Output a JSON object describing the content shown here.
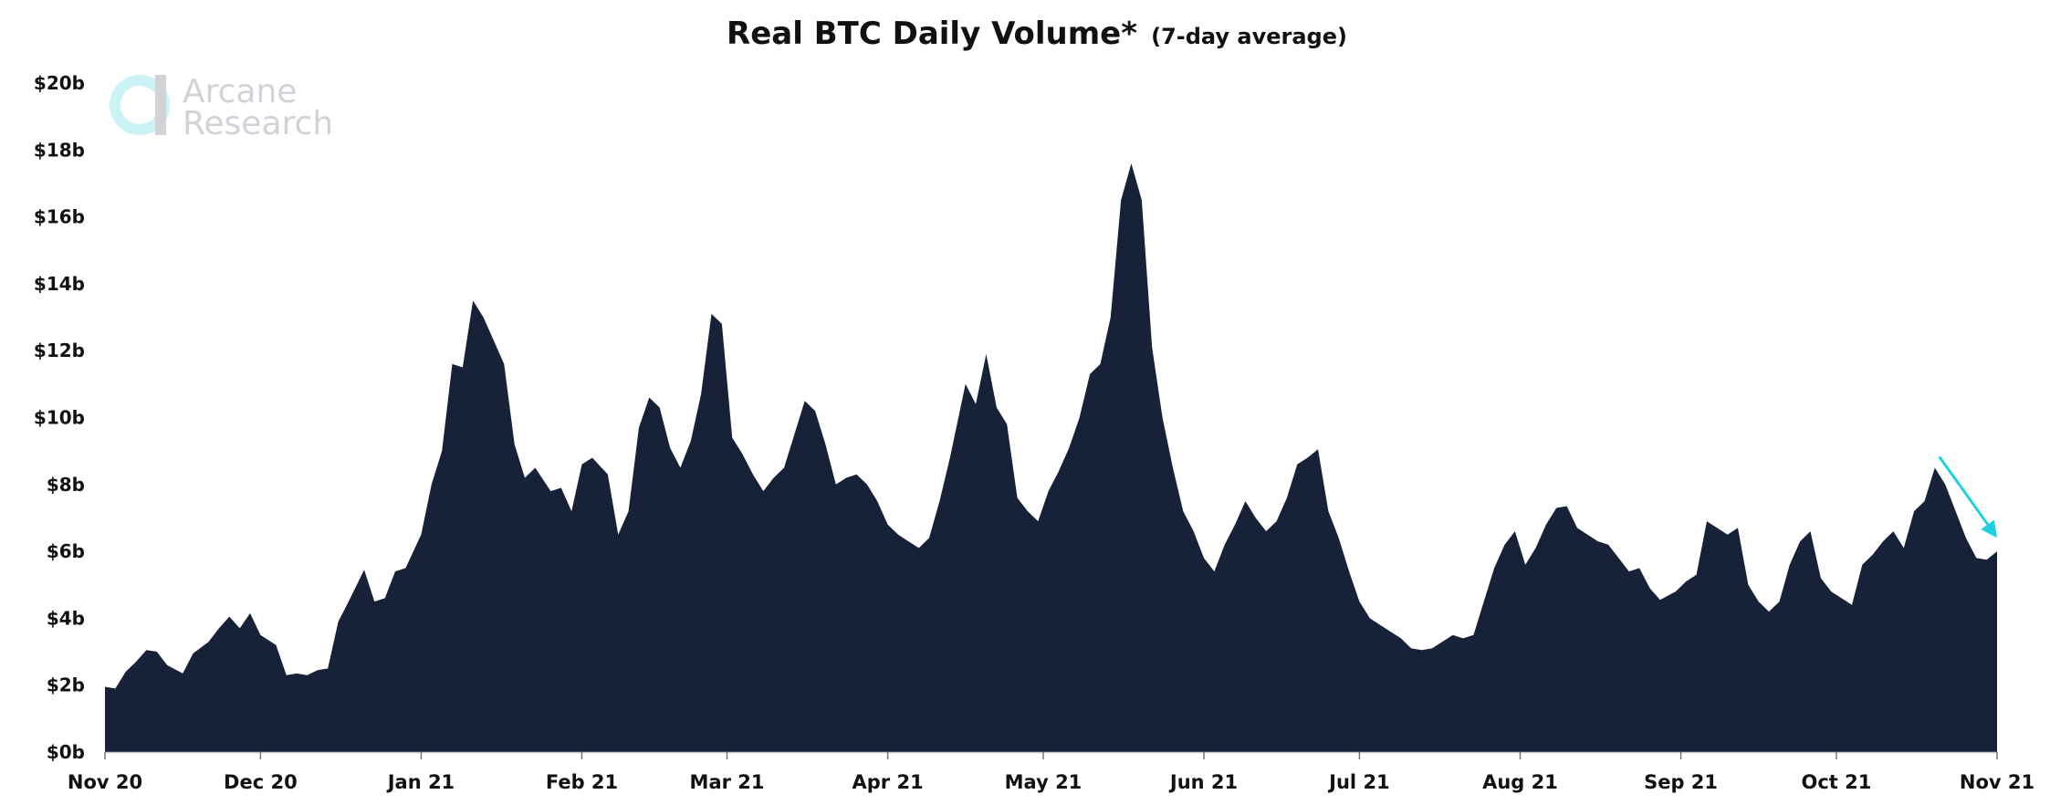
{
  "chart_data": {
    "type": "area",
    "title": "Real BTC Daily Volume*",
    "subtitle": "(7-day average)",
    "watermark": [
      "Arcane",
      "Research"
    ],
    "colors": {
      "area": "#172239",
      "arrow": "#1fd1de",
      "text": "#111111",
      "logo_ring": "#c9f3f6",
      "logo_text": "#cfd1d8"
    },
    "x_start": "2020-11-01",
    "x_end": "2021-11-01",
    "x_ticks": [
      "Nov 20",
      "Dec 20",
      "Jan 21",
      "Feb 21",
      "Mar 21",
      "Apr 21",
      "May 21",
      "Jun 21",
      "Jul 21",
      "Aug 21",
      "Sep 21",
      "Oct 21",
      "Nov 21"
    ],
    "y_ticks": [
      "$0b",
      "$2b",
      "$4b",
      "$6b",
      "$8b",
      "$10b",
      "$12b",
      "$14b",
      "$16b",
      "$18b",
      "$20b"
    ],
    "ylim": [
      0,
      20
    ],
    "yunit": "$ billions",
    "annotation": {
      "type": "arrow",
      "from": [
        "2021-10-21",
        8.8
      ],
      "to": [
        "2021-11-01",
        6.4
      ]
    },
    "series": [
      {
        "values": [
          [
            "2020-11-01",
            1.95
          ],
          [
            "2020-11-03",
            1.9
          ],
          [
            "2020-11-05",
            2.4
          ],
          [
            "2020-11-07",
            2.7
          ],
          [
            "2020-11-09",
            3.05
          ],
          [
            "2020-11-11",
            3.0
          ],
          [
            "2020-11-13",
            2.6
          ],
          [
            "2020-11-16",
            2.35
          ],
          [
            "2020-11-18",
            2.95
          ],
          [
            "2020-11-21",
            3.3
          ],
          [
            "2020-11-23",
            3.7
          ],
          [
            "2020-11-25",
            4.05
          ],
          [
            "2020-11-27",
            3.7
          ],
          [
            "2020-11-29",
            4.15
          ],
          [
            "2020-12-01",
            3.5
          ],
          [
            "2020-12-04",
            3.2
          ],
          [
            "2020-12-06",
            2.3
          ],
          [
            "2020-12-08",
            2.35
          ],
          [
            "2020-12-10",
            2.3
          ],
          [
            "2020-12-12",
            2.45
          ],
          [
            "2020-12-14",
            2.5
          ],
          [
            "2020-12-16",
            3.9
          ],
          [
            "2020-12-18",
            4.5
          ],
          [
            "2020-12-21",
            5.45
          ],
          [
            "2020-12-23",
            4.5
          ],
          [
            "2020-12-25",
            4.6
          ],
          [
            "2020-12-27",
            5.4
          ],
          [
            "2020-12-29",
            5.5
          ],
          [
            "2021-01-01",
            6.5
          ],
          [
            "2021-01-03",
            8.0
          ],
          [
            "2021-01-05",
            9.0
          ],
          [
            "2021-01-07",
            11.6
          ],
          [
            "2021-01-09",
            11.5
          ],
          [
            "2021-01-11",
            13.5
          ],
          [
            "2021-01-13",
            13.0
          ],
          [
            "2021-01-15",
            12.3
          ],
          [
            "2021-01-17",
            11.6
          ],
          [
            "2021-01-19",
            9.2
          ],
          [
            "2021-01-21",
            8.2
          ],
          [
            "2021-01-23",
            8.5
          ],
          [
            "2021-01-26",
            7.8
          ],
          [
            "2021-01-28",
            7.9
          ],
          [
            "2021-01-30",
            7.2
          ],
          [
            "2021-02-01",
            8.6
          ],
          [
            "2021-02-03",
            8.8
          ],
          [
            "2021-02-06",
            8.3
          ],
          [
            "2021-02-08",
            6.5
          ],
          [
            "2021-02-10",
            7.2
          ],
          [
            "2021-02-12",
            9.7
          ],
          [
            "2021-02-14",
            10.6
          ],
          [
            "2021-02-16",
            10.3
          ],
          [
            "2021-02-18",
            9.1
          ],
          [
            "2021-02-20",
            8.5
          ],
          [
            "2021-02-22",
            9.3
          ],
          [
            "2021-02-24",
            10.7
          ],
          [
            "2021-02-26",
            13.1
          ],
          [
            "2021-02-28",
            12.8
          ],
          [
            "2021-03-02",
            9.4
          ],
          [
            "2021-03-04",
            8.9
          ],
          [
            "2021-03-06",
            8.3
          ],
          [
            "2021-03-08",
            7.8
          ],
          [
            "2021-03-10",
            8.2
          ],
          [
            "2021-03-12",
            8.5
          ],
          [
            "2021-03-14",
            9.5
          ],
          [
            "2021-03-16",
            10.5
          ],
          [
            "2021-03-18",
            10.2
          ],
          [
            "2021-03-20",
            9.2
          ],
          [
            "2021-03-22",
            8.0
          ],
          [
            "2021-03-24",
            8.2
          ],
          [
            "2021-03-26",
            8.3
          ],
          [
            "2021-03-28",
            8.0
          ],
          [
            "2021-03-30",
            7.5
          ],
          [
            "2021-04-01",
            6.8
          ],
          [
            "2021-04-03",
            6.5
          ],
          [
            "2021-04-05",
            6.3
          ],
          [
            "2021-04-07",
            6.1
          ],
          [
            "2021-04-09",
            6.4
          ],
          [
            "2021-04-11",
            7.5
          ],
          [
            "2021-04-13",
            8.8
          ],
          [
            "2021-04-16",
            11.0
          ],
          [
            "2021-04-18",
            10.4
          ],
          [
            "2021-04-20",
            11.9
          ],
          [
            "2021-04-22",
            10.3
          ],
          [
            "2021-04-24",
            9.8
          ],
          [
            "2021-04-26",
            7.6
          ],
          [
            "2021-04-28",
            7.2
          ],
          [
            "2021-04-30",
            6.9
          ],
          [
            "2021-05-02",
            7.8
          ],
          [
            "2021-05-04",
            8.4
          ],
          [
            "2021-05-06",
            9.1
          ],
          [
            "2021-05-08",
            10.0
          ],
          [
            "2021-05-10",
            11.3
          ],
          [
            "2021-05-12",
            11.6
          ],
          [
            "2021-05-14",
            13.0
          ],
          [
            "2021-05-16",
            16.5
          ],
          [
            "2021-05-18",
            17.6
          ],
          [
            "2021-05-20",
            16.5
          ],
          [
            "2021-05-22",
            12.1
          ],
          [
            "2021-05-24",
            10.0
          ],
          [
            "2021-05-26",
            8.5
          ],
          [
            "2021-05-28",
            7.2
          ],
          [
            "2021-05-30",
            6.6
          ],
          [
            "2021-06-01",
            5.8
          ],
          [
            "2021-06-03",
            5.4
          ],
          [
            "2021-06-05",
            6.2
          ],
          [
            "2021-06-07",
            6.8
          ],
          [
            "2021-06-09",
            7.5
          ],
          [
            "2021-06-11",
            7.0
          ],
          [
            "2021-06-13",
            6.6
          ],
          [
            "2021-06-15",
            6.9
          ],
          [
            "2021-06-17",
            7.6
          ],
          [
            "2021-06-19",
            8.6
          ],
          [
            "2021-06-21",
            8.8
          ],
          [
            "2021-06-23",
            9.05
          ],
          [
            "2021-06-25",
            7.2
          ],
          [
            "2021-06-27",
            6.4
          ],
          [
            "2021-06-29",
            5.4
          ],
          [
            "2021-07-01",
            4.5
          ],
          [
            "2021-07-03",
            4.0
          ],
          [
            "2021-07-05",
            3.8
          ],
          [
            "2021-07-07",
            3.6
          ],
          [
            "2021-07-09",
            3.4
          ],
          [
            "2021-07-11",
            3.1
          ],
          [
            "2021-07-13",
            3.05
          ],
          [
            "2021-07-15",
            3.1
          ],
          [
            "2021-07-17",
            3.3
          ],
          [
            "2021-07-19",
            3.5
          ],
          [
            "2021-07-21",
            3.4
          ],
          [
            "2021-07-23",
            3.5
          ],
          [
            "2021-07-25",
            4.5
          ],
          [
            "2021-07-27",
            5.5
          ],
          [
            "2021-07-29",
            6.2
          ],
          [
            "2021-07-31",
            6.6
          ],
          [
            "2021-08-02",
            5.6
          ],
          [
            "2021-08-04",
            6.1
          ],
          [
            "2021-08-06",
            6.8
          ],
          [
            "2021-08-08",
            7.3
          ],
          [
            "2021-08-10",
            7.35
          ],
          [
            "2021-08-12",
            6.7
          ],
          [
            "2021-08-14",
            6.5
          ],
          [
            "2021-08-16",
            6.3
          ],
          [
            "2021-08-18",
            6.2
          ],
          [
            "2021-08-20",
            5.8
          ],
          [
            "2021-08-22",
            5.4
          ],
          [
            "2021-08-24",
            5.5
          ],
          [
            "2021-08-26",
            4.9
          ],
          [
            "2021-08-28",
            4.55
          ],
          [
            "2021-08-31",
            4.8
          ],
          [
            "2021-09-02",
            5.1
          ],
          [
            "2021-09-04",
            5.3
          ],
          [
            "2021-09-06",
            6.9
          ],
          [
            "2021-09-08",
            6.7
          ],
          [
            "2021-09-10",
            6.5
          ],
          [
            "2021-09-12",
            6.7
          ],
          [
            "2021-09-14",
            5.0
          ],
          [
            "2021-09-16",
            4.5
          ],
          [
            "2021-09-18",
            4.2
          ],
          [
            "2021-09-20",
            4.5
          ],
          [
            "2021-09-22",
            5.6
          ],
          [
            "2021-09-24",
            6.3
          ],
          [
            "2021-09-26",
            6.6
          ],
          [
            "2021-09-28",
            5.2
          ],
          [
            "2021-09-30",
            4.8
          ],
          [
            "2021-10-02",
            4.6
          ],
          [
            "2021-10-04",
            4.4
          ],
          [
            "2021-10-06",
            5.6
          ],
          [
            "2021-10-08",
            5.9
          ],
          [
            "2021-10-10",
            6.3
          ],
          [
            "2021-10-12",
            6.6
          ],
          [
            "2021-10-14",
            6.1
          ],
          [
            "2021-10-16",
            7.2
          ],
          [
            "2021-10-18",
            7.5
          ],
          [
            "2021-10-20",
            8.5
          ],
          [
            "2021-10-22",
            8.0
          ],
          [
            "2021-10-24",
            7.2
          ],
          [
            "2021-10-26",
            6.4
          ],
          [
            "2021-10-28",
            5.8
          ],
          [
            "2021-10-30",
            5.75
          ],
          [
            "2021-11-01",
            6.0
          ]
        ]
      }
    ]
  }
}
